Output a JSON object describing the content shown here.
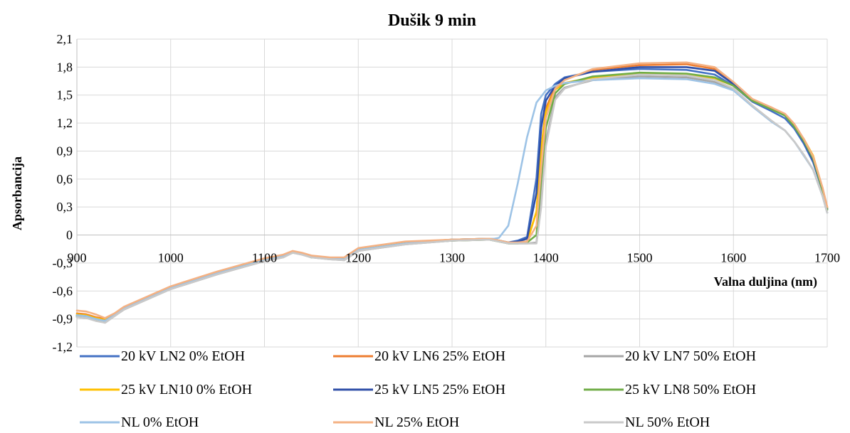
{
  "chart_data": {
    "type": "line",
    "title": "Dušik 9 min",
    "xlabel": "Valna duljina (nm)",
    "ylabel": "Apsorbancija",
    "xlim": [
      900,
      1700
    ],
    "ylim": [
      -1.2,
      2.1
    ],
    "x_ticks": [
      {
        "value": 900,
        "label": "900"
      },
      {
        "value": 1000,
        "label": "1000"
      },
      {
        "value": 1100,
        "label": "1100"
      },
      {
        "value": 1200,
        "label": "1200"
      },
      {
        "value": 1300,
        "label": "1300"
      },
      {
        "value": 1400,
        "label": "1400"
      },
      {
        "value": 1500,
        "label": "1500"
      },
      {
        "value": 1600,
        "label": "1600"
      },
      {
        "value": 1700,
        "label": "1700"
      }
    ],
    "y_ticks": [
      {
        "value": -1.2,
        "label": "-1,2"
      },
      {
        "value": -0.9,
        "label": "-0,9"
      },
      {
        "value": -0.6,
        "label": "-0,6"
      },
      {
        "value": -0.3,
        "label": "-0,3"
      },
      {
        "value": 0,
        "label": "0"
      },
      {
        "value": 0.3,
        "label": "0,3"
      },
      {
        "value": 0.6,
        "label": "0,6"
      },
      {
        "value": 0.9,
        "label": "0,9"
      },
      {
        "value": 1.2,
        "label": "1,2"
      },
      {
        "value": 1.5,
        "label": "1,5"
      },
      {
        "value": 1.8,
        "label": "1,8"
      },
      {
        "value": 2.1,
        "label": "2,1"
      }
    ],
    "grid": true,
    "legend_position": "bottom",
    "series": [
      {
        "name": "20 kV LN2 0% EtOH",
        "color": "#4472c4",
        "plateau": 1.78,
        "edge": 1383,
        "x": [
          900,
          910,
          920,
          930,
          940,
          950,
          1000,
          1050,
          1100,
          1120,
          1130,
          1140,
          1150,
          1170,
          1185,
          1200,
          1250,
          1300,
          1340,
          1360,
          1370,
          1380,
          1390,
          1395,
          1400,
          1410,
          1420,
          1450,
          1500,
          1550,
          1580,
          1600,
          1620,
          1640,
          1655,
          1665,
          1675,
          1685,
          1695,
          1700
        ],
        "y": [
          -0.87,
          -0.88,
          -0.91,
          -0.93,
          -0.86,
          -0.79,
          -0.57,
          -0.41,
          -0.27,
          -0.23,
          -0.19,
          -0.2,
          -0.24,
          -0.25,
          -0.26,
          -0.16,
          -0.09,
          -0.06,
          -0.04,
          -0.08,
          -0.06,
          -0.02,
          0.61,
          1.3,
          1.5,
          1.62,
          1.69,
          1.75,
          1.78,
          1.77,
          1.72,
          1.6,
          1.43,
          1.33,
          1.25,
          1.14,
          0.98,
          0.78,
          0.48,
          0.28
        ]
      },
      {
        "name": "20 kV LN6 25% EtOH",
        "color": "#ed7d31",
        "plateau": 1.82,
        "edge": 1388,
        "x": [
          900,
          910,
          920,
          930,
          940,
          950,
          1000,
          1050,
          1100,
          1120,
          1130,
          1140,
          1150,
          1170,
          1185,
          1200,
          1250,
          1300,
          1340,
          1360,
          1370,
          1380,
          1390,
          1395,
          1400,
          1410,
          1420,
          1450,
          1500,
          1550,
          1580,
          1600,
          1620,
          1640,
          1655,
          1665,
          1675,
          1685,
          1695,
          1700
        ],
        "y": [
          -0.84,
          -0.85,
          -0.88,
          -0.9,
          -0.85,
          -0.78,
          -0.56,
          -0.4,
          -0.26,
          -0.22,
          -0.18,
          -0.2,
          -0.23,
          -0.25,
          -0.25,
          -0.15,
          -0.08,
          -0.05,
          -0.04,
          -0.08,
          -0.08,
          -0.07,
          0.25,
          0.92,
          1.36,
          1.59,
          1.67,
          1.77,
          1.82,
          1.83,
          1.78,
          1.63,
          1.45,
          1.37,
          1.29,
          1.18,
          1.02,
          0.83,
          0.5,
          0.3
        ]
      },
      {
        "name": "20 kV LN7 50% EtOH",
        "color": "#a5a5a5",
        "plateau": 1.7,
        "edge": 1394,
        "x": [
          900,
          910,
          920,
          930,
          940,
          950,
          1000,
          1050,
          1100,
          1120,
          1130,
          1140,
          1150,
          1170,
          1185,
          1200,
          1250,
          1300,
          1340,
          1360,
          1370,
          1380,
          1390,
          1395,
          1400,
          1410,
          1420,
          1450,
          1500,
          1550,
          1580,
          1600,
          1620,
          1640,
          1655,
          1665,
          1675,
          1685,
          1695,
          1700
        ],
        "y": [
          -0.88,
          -0.89,
          -0.91,
          -0.94,
          -0.87,
          -0.8,
          -0.58,
          -0.42,
          -0.28,
          -0.24,
          -0.19,
          -0.21,
          -0.24,
          -0.26,
          -0.27,
          -0.17,
          -0.1,
          -0.06,
          -0.05,
          -0.09,
          -0.09,
          -0.09,
          -0.08,
          0.42,
          1.0,
          1.48,
          1.58,
          1.66,
          1.7,
          1.69,
          1.64,
          1.56,
          1.38,
          1.22,
          1.12,
          1.0,
          0.86,
          0.7,
          0.42,
          0.24
        ]
      },
      {
        "name": "25 kV LN10 0% EtOH",
        "color": "#ffc000",
        "plateau": 1.73,
        "edge": 1388,
        "x": [
          900,
          910,
          920,
          930,
          940,
          950,
          1000,
          1050,
          1100,
          1120,
          1130,
          1140,
          1150,
          1170,
          1185,
          1200,
          1250,
          1300,
          1340,
          1360,
          1370,
          1380,
          1390,
          1395,
          1400,
          1410,
          1420,
          1450,
          1500,
          1550,
          1580,
          1600,
          1620,
          1640,
          1655,
          1665,
          1675,
          1685,
          1695,
          1700
        ],
        "y": [
          -0.85,
          -0.86,
          -0.89,
          -0.91,
          -0.85,
          -0.78,
          -0.56,
          -0.4,
          -0.26,
          -0.22,
          -0.18,
          -0.2,
          -0.23,
          -0.25,
          -0.25,
          -0.15,
          -0.08,
          -0.05,
          -0.04,
          -0.08,
          -0.08,
          -0.07,
          0.25,
          0.92,
          1.32,
          1.56,
          1.63,
          1.69,
          1.73,
          1.72,
          1.68,
          1.6,
          1.45,
          1.36,
          1.29,
          1.17,
          1.03,
          0.85,
          0.5,
          0.29
        ]
      },
      {
        "name": "25 kV LN5 25% EtOH",
        "color": "#2f4fa8",
        "plateau": 1.8,
        "edge": 1385,
        "x": [
          900,
          910,
          920,
          930,
          940,
          950,
          1000,
          1050,
          1100,
          1120,
          1130,
          1140,
          1150,
          1170,
          1185,
          1200,
          1250,
          1300,
          1340,
          1360,
          1370,
          1380,
          1390,
          1395,
          1400,
          1410,
          1420,
          1450,
          1500,
          1550,
          1580,
          1600,
          1620,
          1640,
          1655,
          1665,
          1675,
          1685,
          1695,
          1700
        ],
        "y": [
          -0.86,
          -0.87,
          -0.9,
          -0.92,
          -0.86,
          -0.79,
          -0.57,
          -0.41,
          -0.27,
          -0.23,
          -0.18,
          -0.2,
          -0.23,
          -0.25,
          -0.26,
          -0.16,
          -0.09,
          -0.05,
          -0.04,
          -0.08,
          -0.07,
          -0.04,
          0.45,
          1.15,
          1.44,
          1.6,
          1.68,
          1.75,
          1.8,
          1.8,
          1.76,
          1.62,
          1.45,
          1.36,
          1.28,
          1.16,
          1.0,
          0.8,
          0.48,
          0.28
        ]
      },
      {
        "name": "25 kV LN8 50% EtOH",
        "color": "#70ad47",
        "plateau": 1.74,
        "edge": 1392,
        "x": [
          900,
          910,
          920,
          930,
          940,
          950,
          1000,
          1050,
          1100,
          1120,
          1130,
          1140,
          1150,
          1170,
          1185,
          1200,
          1250,
          1300,
          1340,
          1360,
          1370,
          1380,
          1390,
          1395,
          1400,
          1410,
          1420,
          1450,
          1500,
          1550,
          1580,
          1600,
          1620,
          1640,
          1655,
          1665,
          1675,
          1685,
          1695,
          1700
        ],
        "y": [
          -0.87,
          -0.88,
          -0.91,
          -0.93,
          -0.86,
          -0.79,
          -0.57,
          -0.41,
          -0.27,
          -0.23,
          -0.19,
          -0.2,
          -0.24,
          -0.25,
          -0.26,
          -0.16,
          -0.09,
          -0.06,
          -0.05,
          -0.09,
          -0.09,
          -0.08,
          0.0,
          0.6,
          1.15,
          1.52,
          1.62,
          1.7,
          1.74,
          1.73,
          1.69,
          1.6,
          1.44,
          1.35,
          1.28,
          1.16,
          1.01,
          0.82,
          0.48,
          0.27
        ]
      },
      {
        "name": "NL 0% EtOH",
        "color": "#9dc3e6",
        "plateau": 1.68,
        "edge": 1378,
        "x": [
          900,
          910,
          920,
          930,
          940,
          950,
          1000,
          1050,
          1100,
          1120,
          1130,
          1140,
          1150,
          1170,
          1185,
          1200,
          1250,
          1300,
          1340,
          1345,
          1350,
          1360,
          1370,
          1380,
          1390,
          1400,
          1410,
          1420,
          1450,
          1500,
          1550,
          1580,
          1600,
          1620,
          1640,
          1655,
          1665,
          1675,
          1685,
          1695,
          1700
        ],
        "y": [
          -0.86,
          -0.87,
          -0.9,
          -0.92,
          -0.86,
          -0.79,
          -0.57,
          -0.41,
          -0.27,
          -0.23,
          -0.18,
          -0.2,
          -0.23,
          -0.25,
          -0.26,
          -0.16,
          -0.09,
          -0.05,
          -0.04,
          -0.04,
          -0.03,
          0.1,
          0.55,
          1.05,
          1.42,
          1.55,
          1.6,
          1.63,
          1.66,
          1.68,
          1.67,
          1.62,
          1.55,
          1.38,
          1.22,
          1.12,
          1.0,
          0.85,
          0.7,
          0.42,
          0.24
        ]
      },
      {
        "name": "NL 25% EtOH",
        "color": "#f4b183",
        "plateau": 1.84,
        "edge": 1390,
        "x": [
          900,
          910,
          920,
          930,
          940,
          950,
          1000,
          1050,
          1100,
          1120,
          1130,
          1140,
          1150,
          1170,
          1185,
          1200,
          1250,
          1300,
          1340,
          1360,
          1370,
          1380,
          1390,
          1395,
          1400,
          1410,
          1420,
          1450,
          1500,
          1550,
          1580,
          1600,
          1620,
          1640,
          1655,
          1665,
          1675,
          1685,
          1695,
          1700
        ],
        "y": [
          -0.81,
          -0.82,
          -0.85,
          -0.89,
          -0.84,
          -0.77,
          -0.55,
          -0.39,
          -0.25,
          -0.21,
          -0.17,
          -0.19,
          -0.22,
          -0.24,
          -0.24,
          -0.14,
          -0.07,
          -0.05,
          -0.04,
          -0.08,
          -0.08,
          -0.07,
          0.1,
          0.72,
          1.25,
          1.57,
          1.66,
          1.78,
          1.84,
          1.85,
          1.8,
          1.64,
          1.46,
          1.37,
          1.3,
          1.19,
          1.03,
          0.84,
          0.51,
          0.3
        ]
      },
      {
        "name": "NL 50% EtOH",
        "color": "#c9c9c9",
        "plateau": 1.72,
        "edge": 1395,
        "x": [
          900,
          910,
          920,
          930,
          940,
          950,
          1000,
          1050,
          1100,
          1120,
          1130,
          1140,
          1150,
          1170,
          1185,
          1200,
          1250,
          1300,
          1340,
          1360,
          1370,
          1380,
          1390,
          1395,
          1400,
          1410,
          1420,
          1450,
          1500,
          1550,
          1580,
          1600,
          1620,
          1640,
          1655,
          1665,
          1675,
          1685,
          1695,
          1700
        ],
        "y": [
          -0.88,
          -0.89,
          -0.92,
          -0.94,
          -0.87,
          -0.8,
          -0.58,
          -0.42,
          -0.28,
          -0.24,
          -0.19,
          -0.21,
          -0.24,
          -0.26,
          -0.27,
          -0.17,
          -0.1,
          -0.06,
          -0.05,
          -0.09,
          -0.09,
          -0.09,
          -0.09,
          0.3,
          0.95,
          1.45,
          1.57,
          1.67,
          1.72,
          1.71,
          1.66,
          1.57,
          1.39,
          1.23,
          1.12,
          1.0,
          0.86,
          0.7,
          0.42,
          0.24
        ]
      }
    ]
  }
}
